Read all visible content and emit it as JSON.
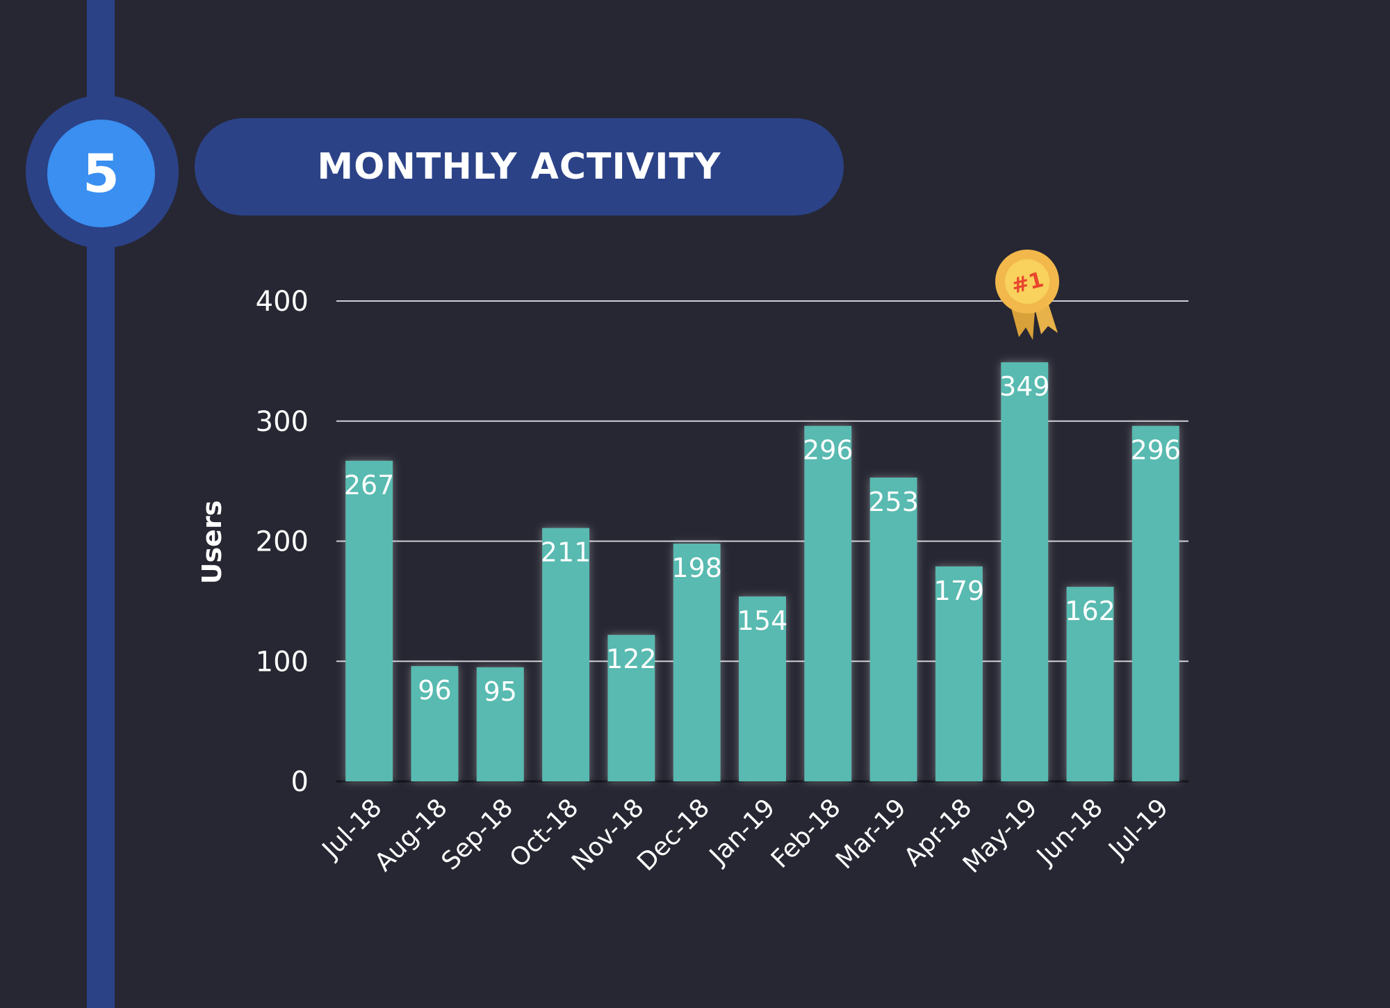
{
  "section": {
    "step_number": "5",
    "title": "MONTHLY ACTIVITY"
  },
  "badge": {
    "label": "#1"
  },
  "colors": {
    "background": "#272733",
    "accent_dark": "#2b4287",
    "accent_light": "#3a8ff0",
    "bar": "#58bab0",
    "badge_gold": "#f2b84b",
    "badge_text": "#e8452e"
  },
  "chart_data": {
    "type": "bar",
    "title": "MONTHLY ACTIVITY",
    "xlabel": "",
    "ylabel": "Users",
    "ylim": [
      0,
      400
    ],
    "yticks": [
      0,
      100,
      200,
      300,
      400
    ],
    "grid": true,
    "categories": [
      "Jul-18",
      "Aug-18",
      "Sep-18",
      "Oct-18",
      "Nov-18",
      "Dec-18",
      "Jan-19",
      "Feb-18",
      "Mar-19",
      "Apr-18",
      "May-19",
      "Jun-18",
      "Jul-19"
    ],
    "values": [
      267,
      96,
      95,
      211,
      122,
      198,
      154,
      296,
      253,
      179,
      349,
      162,
      296
    ],
    "highlight": {
      "category": "May-19",
      "annotation": "#1"
    }
  }
}
